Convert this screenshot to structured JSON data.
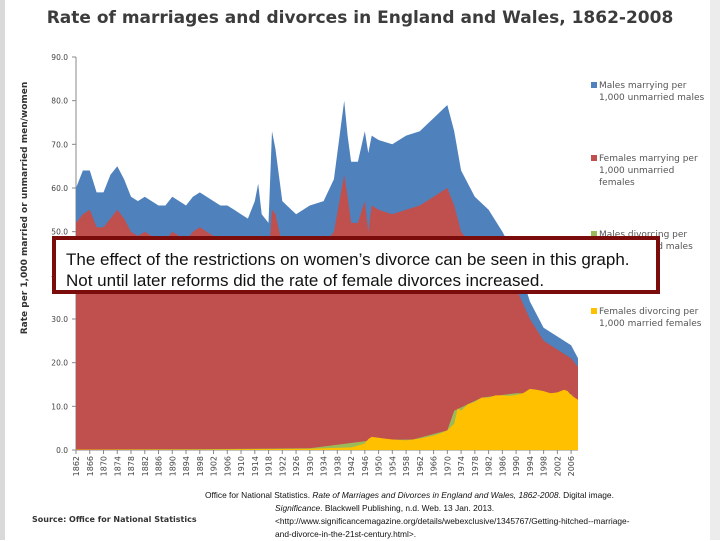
{
  "chart_data": {
    "type": "area",
    "title": "Rate of marriages and divorces in England and Wales, 1862-2008",
    "ylabel": "Rate per 1,000 married or unmarried men/women",
    "xlabel": "",
    "ylim": [
      0,
      90
    ],
    "yticks": [
      "0.0",
      "10.0",
      "20.0",
      "30.0",
      "40.0",
      "50.0",
      "60.0",
      "70.0",
      "80.0",
      "90.0"
    ],
    "xlim": [
      1862,
      2008
    ],
    "xticks": [
      "1862",
      "1866",
      "1870",
      "1874",
      "1878",
      "1882",
      "1886",
      "1890",
      "1894",
      "1898",
      "1902",
      "1906",
      "1910",
      "1914",
      "1918",
      "1922",
      "1926",
      "1930",
      "1934",
      "1938",
      "1942",
      "1946",
      "1950",
      "1954",
      "1958",
      "1962",
      "1966",
      "1970",
      "1974",
      "1978",
      "1982",
      "1986",
      "1990",
      "1994",
      "1998",
      "2002",
      "2006"
    ],
    "series": [
      {
        "name": "Males marrying per 1,000 unmarried males",
        "color": "#4f81bd",
        "x": [
          1862,
          1864,
          1866,
          1868,
          1870,
          1872,
          1874,
          1876,
          1878,
          1880,
          1882,
          1884,
          1886,
          1888,
          1890,
          1892,
          1894,
          1896,
          1898,
          1900,
          1902,
          1904,
          1906,
          1908,
          1910,
          1912,
          1914,
          1915,
          1916,
          1918,
          1919,
          1920,
          1922,
          1926,
          1930,
          1934,
          1937,
          1940,
          1941,
          1942,
          1944,
          1946,
          1947,
          1948,
          1950,
          1954,
          1958,
          1962,
          1966,
          1970,
          1972,
          1974,
          1978,
          1982,
          1986,
          1990,
          1994,
          1998,
          2002,
          2006,
          2008
        ],
        "values": [
          60,
          64,
          64,
          59,
          59,
          63,
          65,
          62,
          58,
          57,
          58,
          57,
          56,
          56,
          58,
          57,
          56,
          58,
          59,
          58,
          57,
          56,
          56,
          55,
          54,
          53,
          57,
          61,
          54,
          52,
          73,
          69,
          57,
          54,
          56,
          57,
          62,
          80,
          72,
          66,
          66,
          73,
          68,
          72,
          71,
          70,
          72,
          73,
          76,
          79,
          73,
          64,
          58,
          55,
          50,
          44,
          34,
          28,
          26,
          24,
          21
        ]
      },
      {
        "name": "Females marrying per 1,000 unmarried females",
        "color": "#c0504d",
        "x": [
          1862,
          1864,
          1866,
          1868,
          1870,
          1872,
          1874,
          1876,
          1878,
          1880,
          1882,
          1884,
          1886,
          1888,
          1890,
          1892,
          1894,
          1896,
          1898,
          1900,
          1902,
          1904,
          1906,
          1908,
          1910,
          1912,
          1914,
          1915,
          1916,
          1918,
          1919,
          1920,
          1922,
          1926,
          1930,
          1934,
          1937,
          1940,
          1941,
          1942,
          1944,
          1946,
          1947,
          1948,
          1950,
          1954,
          1958,
          1962,
          1966,
          1970,
          1972,
          1974,
          1978,
          1982,
          1986,
          1990,
          1994,
          1998,
          2002,
          2006,
          2008
        ],
        "values": [
          52,
          54,
          55,
          51,
          51,
          53,
          55,
          53,
          50,
          49,
          50,
          49,
          48,
          48,
          50,
          49,
          48,
          50,
          51,
          50,
          49,
          48,
          48,
          47,
          46,
          46,
          47,
          46,
          44,
          43,
          55,
          54,
          47,
          45,
          46,
          47,
          50,
          63,
          58,
          52,
          52,
          57,
          50,
          56,
          55,
          54,
          55,
          56,
          58,
          60,
          56,
          50,
          46,
          44,
          41,
          37,
          30,
          25,
          23,
          21,
          19
        ]
      },
      {
        "name": "Males divorcing per 1,000 married males",
        "color": "#9bbb59",
        "x": [
          1862,
          1900,
          1930,
          1946,
          1948,
          1960,
          1970,
          1972,
          1980,
          1990,
          2000,
          2006,
          2008
        ],
        "values": [
          0.1,
          0.2,
          0.4,
          2.0,
          2.3,
          2.4,
          4.5,
          9.0,
          12.0,
          13.0,
          13.0,
          12.8,
          11.0
        ]
      },
      {
        "name": "Females divorcing per 1,000 married females",
        "color": "#ffc000",
        "x": [
          1862,
          1900,
          1930,
          1942,
          1944,
          1946,
          1947,
          1948,
          1950,
          1954,
          1958,
          1962,
          1966,
          1968,
          1970,
          1972,
          1973,
          1974,
          1976,
          1978,
          1980,
          1982,
          1984,
          1986,
          1988,
          1990,
          1992,
          1994,
          1996,
          1998,
          2000,
          2002,
          2004,
          2005,
          2006,
          2008
        ],
        "values": [
          0.1,
          0.1,
          0.3,
          0.6,
          1.0,
          1.5,
          2.5,
          3.0,
          2.8,
          2.4,
          2.2,
          2.6,
          3.3,
          3.8,
          4.5,
          6.0,
          9.5,
          9.0,
          10.5,
          11.0,
          12.0,
          12.0,
          12.5,
          12.5,
          12.4,
          12.6,
          13.0,
          14.0,
          13.8,
          13.5,
          13.0,
          13.2,
          13.8,
          13.5,
          12.5,
          11.5
        ]
      }
    ],
    "legend": [
      {
        "label_line1": "Males marrying per",
        "label_line2": "1,000 unmarried males",
        "color": "#4f81bd"
      },
      {
        "label_line1": "Females marrying per",
        "label_line2": "1,000 unmarried",
        "label_line3": "females",
        "color": "#c0504d"
      },
      {
        "label_line1": "Males divorcing per",
        "label_line2": "1,000 married males",
        "color": "#9bbb59"
      },
      {
        "label_line1": "Females divorcing per",
        "label_line2": "1,000 married females",
        "color": "#ffc000"
      }
    ]
  },
  "callout": {
    "line1": "The effect of the restrictions on women’s divorce can be seen in this graph.",
    "line2": "Not until later reforms did the rate of female divorces increased."
  },
  "source": "Source: Office for National Statistics",
  "citation": {
    "part1": "Office for National Statistics. ",
    "title": "Rate of Marriages and Divorces in England and Wales, 1862-2008",
    "part2": ". Digital image.",
    "journal": "Significance",
    "line2_rest": ". Blackwell Publishing, n.d. Web. 13 Jan. 2013.",
    "line3": "<http://www.significancemagazine.org/details/webexclusive/1345767/Getting-hitched--marriage-",
    "line4": "and-divorce-in-the-21st-century.html>."
  }
}
